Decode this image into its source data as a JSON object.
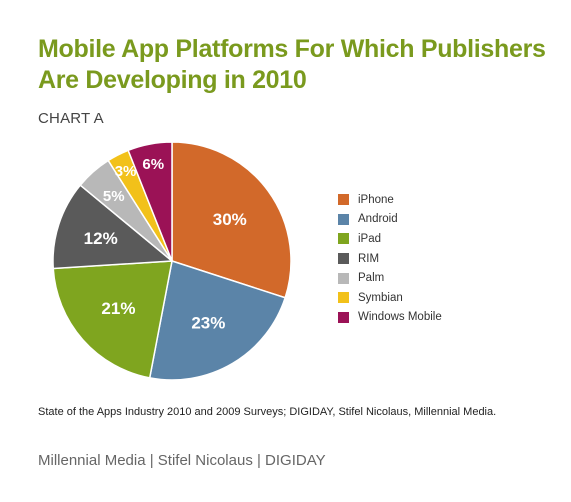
{
  "title_line1": "Mobile App Platforms For Which Publishers",
  "title_line2": "Are Developing in 2010",
  "subtitle": "CHART A",
  "source": "State of the Apps Industry 2010 and 2009 Surveys; DIGIDAY, Stifel Nicolaus, Millennial Media.",
  "footer": "Millennial Media | Stifel Nicolaus | DIGIDAY",
  "chart_data": {
    "type": "pie",
    "categories": [
      "iPhone",
      "Android",
      "iPad",
      "RIM",
      "Palm",
      "Symbian",
      "Windows Mobile"
    ],
    "values": [
      30,
      23,
      21,
      12,
      5,
      3,
      6
    ],
    "labels": [
      "30%",
      "23%",
      "21%",
      "12%",
      "5%",
      "3%",
      "6%"
    ],
    "colors": [
      "#d2692a",
      "#5b84a8",
      "#7fa51f",
      "#5a5a5a",
      "#b8b8b8",
      "#f2c11a",
      "#9b1256"
    ],
    "legend_position": "right"
  }
}
